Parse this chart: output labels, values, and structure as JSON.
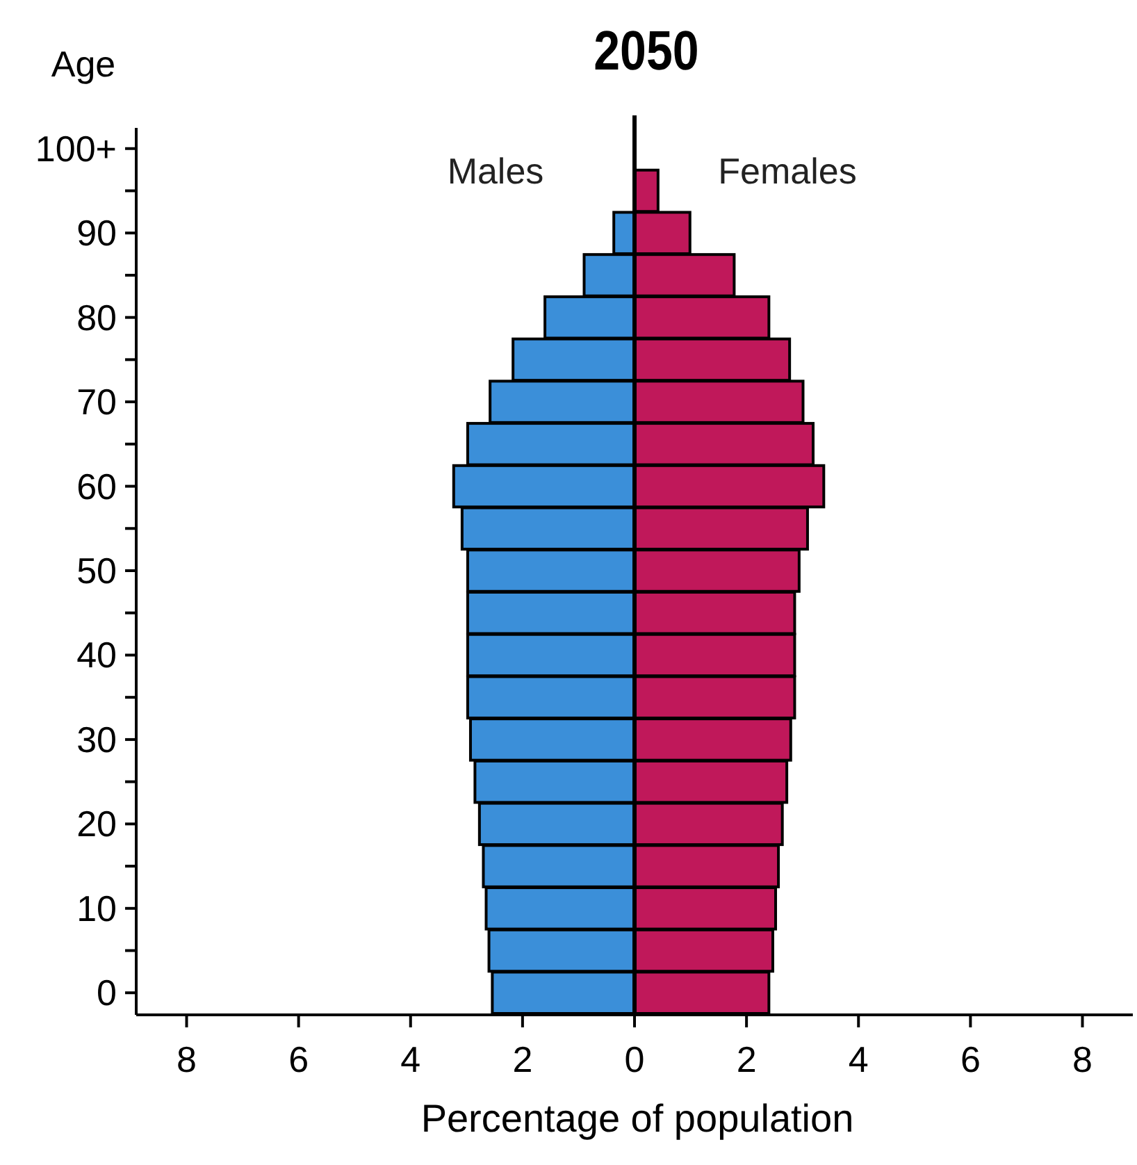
{
  "chart_data": {
    "type": "bar",
    "orientation": "horizontal",
    "stacked": true,
    "title": "2050",
    "ylabel": "Age",
    "xlabel": "Percentage of population",
    "categories": [
      "100+",
      null,
      "90",
      null,
      "80",
      null,
      "70",
      null,
      "60",
      null,
      "50",
      null,
      "40",
      null,
      "30",
      null,
      "20",
      null,
      "10",
      null,
      "0"
    ],
    "series": [
      {
        "name": "Males",
        "color": "#3b8fd9",
        "values": [
          null,
          null,
          -0.37,
          -0.9,
          -1.6,
          -2.17,
          -2.58,
          -2.98,
          -3.23,
          -3.08,
          -2.98,
          -2.98,
          -2.98,
          -2.98,
          -2.93,
          -2.85,
          -2.77,
          -2.7,
          -2.65,
          -2.6,
          -2.54
        ]
      },
      {
        "name": "Females",
        "color": "#c0185a",
        "values": [
          null,
          0.42,
          0.99,
          1.78,
          2.4,
          2.77,
          3.01,
          3.19,
          3.38,
          3.09,
          2.94,
          2.86,
          2.86,
          2.86,
          2.79,
          2.72,
          2.64,
          2.57,
          2.52,
          2.47,
          2.4
        ]
      }
    ],
    "xlim": [
      -8.9,
      8.9
    ],
    "xticks": [
      {
        "value": -8,
        "label": "8"
      },
      {
        "value": -6,
        "label": "6"
      },
      {
        "value": -4,
        "label": "4"
      },
      {
        "value": -2,
        "label": "2"
      },
      0,
      2,
      4,
      6,
      8
    ],
    "ref_lines": [
      {
        "axis": "x",
        "value": 0,
        "color": "#000000"
      }
    ],
    "grid": false,
    "legend": false
  }
}
